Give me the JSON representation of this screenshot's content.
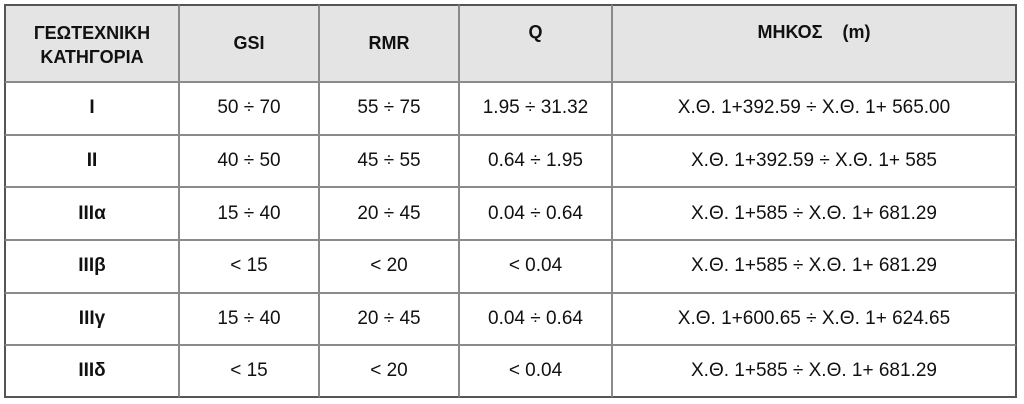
{
  "headers": {
    "category_line1": "ΓΕΩΤΕΧΝΙΚΗ",
    "category_line2": "ΚΑΤΗΓΟΡΙΑ",
    "gsi": "GSI",
    "rmr": "RMR",
    "q": "Q",
    "length": "ΜΗΚΟΣ    (m)"
  },
  "rows": [
    {
      "category": "I",
      "gsi": "50 ÷ 70",
      "rmr": "55 ÷ 75",
      "q": "1.95 ÷ 31.32",
      "length": "Χ.Θ. 1+392.59 ÷ Χ.Θ. 1+ 565.00"
    },
    {
      "category": "II",
      "gsi": "40 ÷ 50",
      "rmr": "45 ÷ 55",
      "q": "0.64 ÷ 1.95",
      "length": "Χ.Θ. 1+392.59 ÷ Χ.Θ. 1+ 585"
    },
    {
      "category": "IIIα",
      "gsi": "15 ÷ 40",
      "rmr": "20 ÷ 45",
      "q": "0.04 ÷ 0.64",
      "length": "Χ.Θ. 1+585 ÷ Χ.Θ. 1+ 681.29"
    },
    {
      "category": "IIIβ",
      "gsi": "< 15",
      "rmr": "< 20",
      "q": "< 0.04",
      "length": "Χ.Θ. 1+585 ÷ Χ.Θ. 1+ 681.29"
    },
    {
      "category": "IIIγ",
      "gsi": "15 ÷ 40",
      "rmr": "20 ÷ 45",
      "q": "0.04 ÷ 0.64",
      "length": "Χ.Θ. 1+600.65 ÷ Χ.Θ. 1+ 624.65"
    },
    {
      "category": "IIIδ",
      "gsi": "< 15",
      "rmr": "< 20",
      "q": "< 0.04",
      "length": "Χ.Θ. 1+585 ÷ Χ.Θ. 1+ 681.29"
    }
  ]
}
